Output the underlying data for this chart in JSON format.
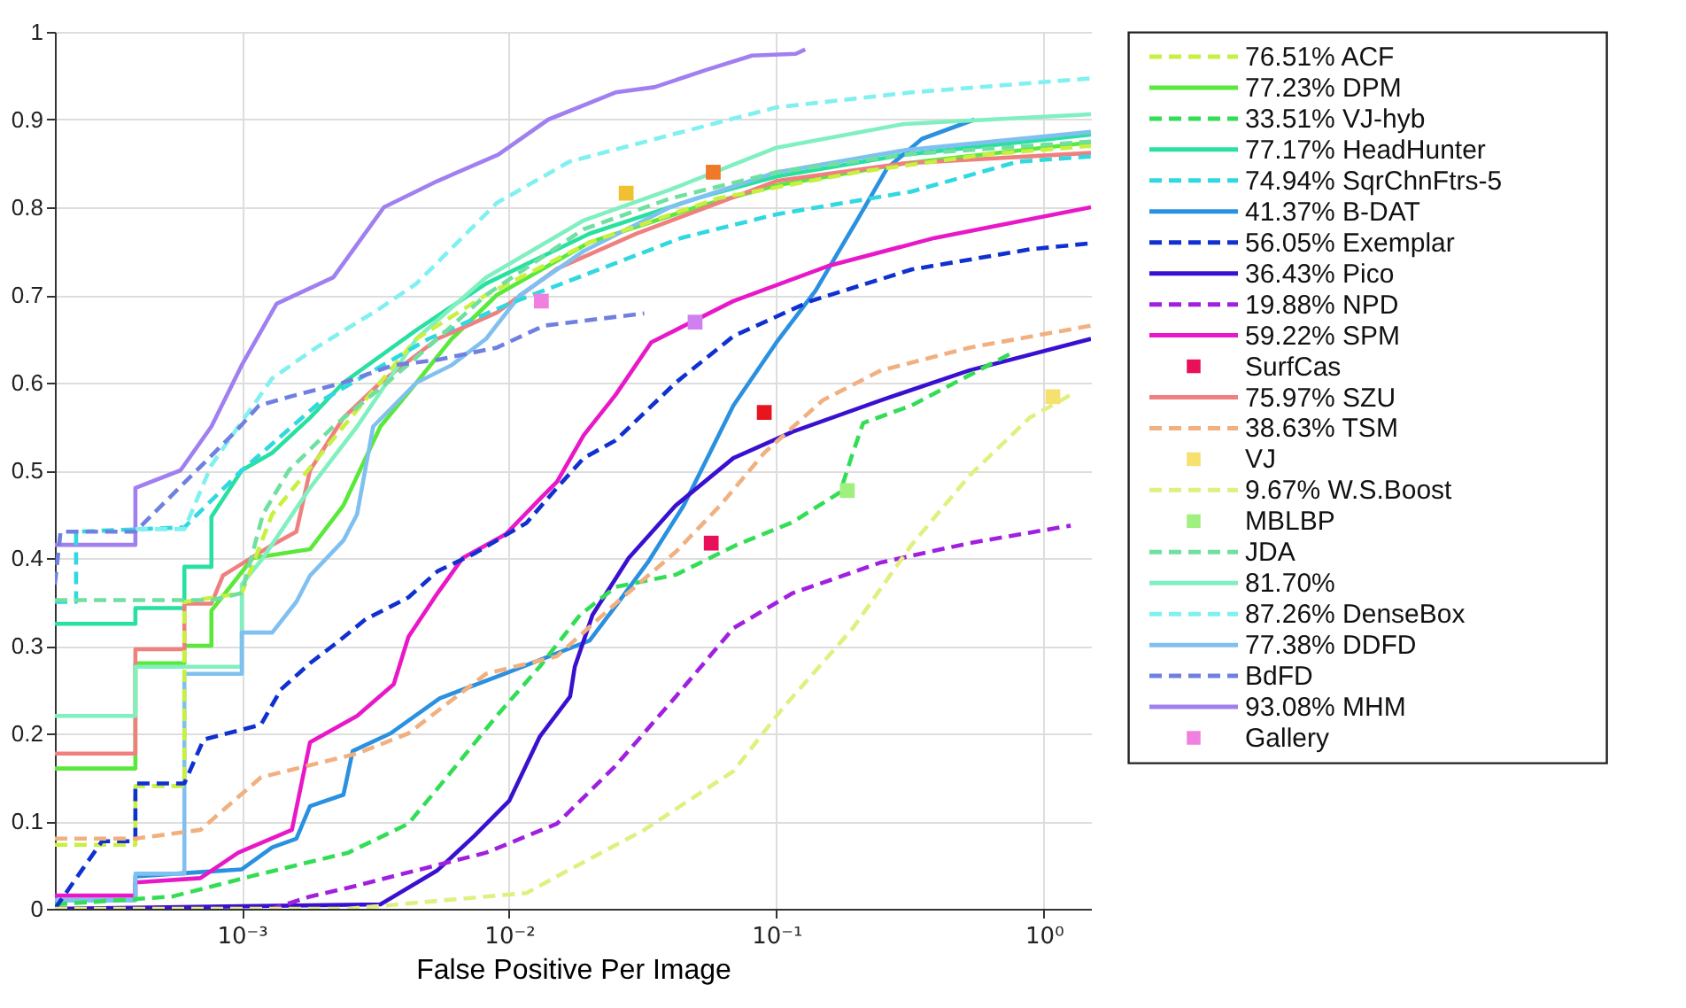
{
  "chart_data": {
    "type": "line",
    "xlabel": "False Positive Per Image",
    "log": "x",
    "grid": true,
    "legend": "right",
    "xlim": [
      0.0002,
      1.5
    ],
    "xticks": [
      {
        "value": 0.001,
        "label": "10⁻³"
      },
      {
        "value": 0.01,
        "label": "10⁻²"
      },
      {
        "value": 0.1,
        "label": "10⁻¹"
      },
      {
        "value": 1,
        "label": "10⁰"
      }
    ],
    "ylim": [
      0,
      1
    ],
    "yticks": [
      0,
      0.1,
      0.2,
      0.3,
      0.4,
      0.5,
      0.6,
      0.7,
      0.8,
      0.9,
      1
    ],
    "series": [
      {
        "type": "scatter",
        "marker": "square",
        "color": "#e8141e",
        "x": [
          0.09
        ],
        "values": [
          0.566
        ]
      },
      {
        "type": "scatter",
        "marker": "square",
        "color": "#f07828",
        "x": [
          0.058
        ],
        "values": [
          0.84
        ]
      },
      {
        "type": "scatter",
        "marker": "square",
        "color": "#f0c030",
        "x": [
          0.0274
        ],
        "values": [
          0.816
        ]
      },
      {
        "name": "76.51% ACF",
        "type": "line",
        "line_style": "dashed",
        "color": "#c8f040",
        "x": [
          0.0002,
          0.0004,
          0.0004,
          0.00061,
          0.00061,
          0.001,
          0.0013,
          0.0024,
          0.0045,
          0.0082,
          0.02,
          0.06,
          0.2,
          0.6,
          1.5
        ],
        "values": [
          0.073,
          0.073,
          0.14,
          0.14,
          0.35,
          0.36,
          0.45,
          0.55,
          0.65,
          0.7,
          0.76,
          0.81,
          0.84,
          0.86,
          0.87
        ]
      },
      {
        "name": "77.23% DPM",
        "type": "line",
        "line_style": "solid",
        "color": "#5ae83a",
        "x": [
          0.0002,
          0.0004,
          0.0004,
          0.00061,
          0.00061,
          0.00077,
          0.00077,
          0.0011,
          0.0018,
          0.0024,
          0.0033,
          0.0045,
          0.0061,
          0.009,
          0.02,
          0.05,
          0.1,
          0.3,
          1.5
        ],
        "values": [
          0.16,
          0.16,
          0.28,
          0.28,
          0.3,
          0.3,
          0.34,
          0.4,
          0.41,
          0.46,
          0.55,
          0.6,
          0.65,
          0.7,
          0.76,
          0.8,
          0.825,
          0.85,
          0.874
        ]
      },
      {
        "name": "33.51% VJ-hyb",
        "type": "line",
        "line_style": "dashed",
        "color": "#33dd55",
        "x": [
          0.0002,
          0.00055,
          0.00108,
          0.0025,
          0.0042,
          0.0061,
          0.0091,
          0.013,
          0.0184,
          0.025,
          0.042,
          0.071,
          0.115,
          0.173,
          0.193,
          0.211,
          0.32,
          0.76
        ],
        "values": [
          0.005,
          0.014,
          0.037,
          0.064,
          0.097,
          0.157,
          0.222,
          0.276,
          0.335,
          0.367,
          0.381,
          0.415,
          0.441,
          0.475,
          0.52,
          0.554,
          0.574,
          0.634
        ]
      },
      {
        "name": "77.17% HeadHunter",
        "type": "line",
        "line_style": "solid",
        "color": "#28e0a0",
        "x": [
          0.0002,
          0.0004,
          0.0004,
          0.00061,
          0.00061,
          0.00077,
          0.00077,
          0.001,
          0.0013,
          0.0018,
          0.0024,
          0.0045,
          0.0082,
          0.02,
          0.05,
          0.1,
          0.3,
          1.5
        ],
        "values": [
          0.325,
          0.325,
          0.343,
          0.343,
          0.39,
          0.39,
          0.447,
          0.5,
          0.52,
          0.56,
          0.6,
          0.66,
          0.713,
          0.77,
          0.81,
          0.835,
          0.86,
          0.883
        ]
      },
      {
        "name": "74.94% SqrChnFtrs-5",
        "type": "line",
        "line_style": "dashed",
        "color": "#30d8e0",
        "x": [
          0.0002,
          0.00024,
          0.00024,
          0.00061,
          0.001,
          0.002,
          0.005,
          0.01,
          0.02,
          0.044,
          0.1,
          0.32,
          0.8,
          1.5
        ],
        "values": [
          0.35,
          0.35,
          0.43,
          0.435,
          0.5,
          0.58,
          0.65,
          0.69,
          0.725,
          0.765,
          0.792,
          0.818,
          0.852,
          0.858
        ]
      },
      {
        "name": "41.37% B-DAT",
        "type": "line",
        "line_style": "solid",
        "color": "#2a90e0",
        "x": [
          0.0002,
          0.0004,
          0.0004,
          0.001,
          0.0013,
          0.0016,
          0.0018,
          0.0024,
          0.0026,
          0.0036,
          0.0055,
          0.01,
          0.02,
          0.025,
          0.033,
          0.045,
          0.069,
          0.1,
          0.14,
          0.2,
          0.26,
          0.35,
          0.55
        ],
        "values": [
          0.01,
          0.01,
          0.037,
          0.045,
          0.07,
          0.08,
          0.117,
          0.13,
          0.18,
          0.2,
          0.24,
          0.27,
          0.306,
          0.345,
          0.395,
          0.46,
          0.574,
          0.646,
          0.705,
          0.785,
          0.845,
          0.878,
          0.9
        ]
      },
      {
        "name": "56.05% Exemplar",
        "type": "line",
        "line_style": "dashed",
        "color": "#1030d0",
        "x": [
          0.0002,
          0.0003,
          0.0004,
          0.0004,
          0.00061,
          0.00072,
          0.00118,
          0.0014,
          0.0018,
          0.0023,
          0.0029,
          0.0042,
          0.0054,
          0.0074,
          0.0116,
          0.0151,
          0.019,
          0.025,
          0.042,
          0.069,
          0.134,
          0.32,
          0.885,
          1.5
        ],
        "values": [
          0.0,
          0.077,
          0.077,
          0.143,
          0.143,
          0.193,
          0.21,
          0.25,
          0.28,
          0.305,
          0.33,
          0.355,
          0.385,
          0.405,
          0.44,
          0.48,
          0.514,
          0.534,
          0.6,
          0.653,
          0.693,
          0.729,
          0.752,
          0.759
        ]
      },
      {
        "name": "36.43% Pico",
        "type": "line",
        "line_style": "solid",
        "color": "#3a10d0",
        "x": [
          0.0002,
          0.0033,
          0.0054,
          0.0074,
          0.01,
          0.013,
          0.0169,
          0.0176,
          0.0205,
          0.028,
          0.042,
          0.069,
          0.115,
          0.246,
          0.527,
          1.5
        ],
        "values": [
          0.0,
          0.005,
          0.044,
          0.083,
          0.123,
          0.196,
          0.242,
          0.276,
          0.335,
          0.4,
          0.46,
          0.514,
          0.544,
          0.58,
          0.614,
          0.65
        ]
      },
      {
        "name": "19.88% NPD",
        "type": "line",
        "line_style": "dashed",
        "color": "#a020e0",
        "x": [
          0.0002,
          0.0013,
          0.0018,
          0.0025,
          0.0082,
          0.0151,
          0.025,
          0.042,
          0.069,
          0.115,
          0.246,
          0.527,
          1.26
        ],
        "values": [
          0.0,
          0.0,
          0.014,
          0.024,
          0.064,
          0.097,
          0.163,
          0.242,
          0.32,
          0.36,
          0.395,
          0.417,
          0.437
        ]
      },
      {
        "name": "59.22% SPM",
        "type": "line",
        "line_style": "solid",
        "color": "#e818c8",
        "x": [
          0.0002,
          0.0004,
          0.0004,
          0.0007,
          0.00097,
          0.00154,
          0.0018,
          0.0027,
          0.0037,
          0.0042,
          0.0054,
          0.0067,
          0.0097,
          0.013,
          0.0151,
          0.019,
          0.025,
          0.034,
          0.069,
          0.156,
          0.39,
          1.5
        ],
        "values": [
          0.015,
          0.015,
          0.03,
          0.035,
          0.064,
          0.09,
          0.19,
          0.22,
          0.256,
          0.31,
          0.36,
          0.4,
          0.427,
          0.467,
          0.487,
          0.54,
          0.586,
          0.646,
          0.693,
          0.733,
          0.765,
          0.8
        ]
      },
      {
        "name": "SurfCas",
        "type": "scatter",
        "marker": "square",
        "color": "#e8105a",
        "x": [
          0.057
        ],
        "values": [
          0.417
        ]
      },
      {
        "name": "75.97% SZU",
        "type": "line",
        "line_style": "solid",
        "color": "#f08080",
        "x": [
          0.0002,
          0.0004,
          0.0004,
          0.00061,
          0.00061,
          0.00077,
          0.00085,
          0.0013,
          0.0016,
          0.0018,
          0.0024,
          0.0033,
          0.0054,
          0.009,
          0.0151,
          0.03,
          0.1,
          0.3,
          1.5
        ],
        "values": [
          0.177,
          0.177,
          0.296,
          0.296,
          0.348,
          0.348,
          0.38,
          0.415,
          0.43,
          0.5,
          0.56,
          0.6,
          0.65,
          0.68,
          0.73,
          0.77,
          0.83,
          0.85,
          0.862
        ]
      },
      {
        "name": "38.63% TSM",
        "type": "line",
        "line_style": "dashed",
        "color": "#f0b080",
        "x": [
          0.0002,
          0.0004,
          0.0007,
          0.00118,
          0.0027,
          0.0042,
          0.0082,
          0.0151,
          0.025,
          0.042,
          0.062,
          0.09,
          0.149,
          0.246,
          0.527,
          1.5
        ],
        "values": [
          0.08,
          0.08,
          0.09,
          0.15,
          0.177,
          0.2,
          0.268,
          0.288,
          0.348,
          0.407,
          0.461,
          0.52,
          0.58,
          0.614,
          0.64,
          0.665
        ]
      },
      {
        "name": "VJ",
        "type": "scatter",
        "marker": "square",
        "color": "#f5e070",
        "x": [
          1.08
        ],
        "values": [
          0.584
        ]
      },
      {
        "name": "9.67% W.S.Boost",
        "type": "line",
        "line_style": "dashed",
        "color": "#e0f080",
        "x": [
          0.0002,
          0.0025,
          0.0116,
          0.0151,
          0.032,
          0.069,
          0.105,
          0.193,
          0.32,
          0.527,
          0.885,
          1.26
        ],
        "values": [
          0.0,
          0.0,
          0.018,
          0.037,
          0.09,
          0.157,
          0.228,
          0.32,
          0.415,
          0.494,
          0.56,
          0.586
        ]
      },
      {
        "name": "MBLBP",
        "type": "scatter",
        "marker": "square",
        "color": "#a0f080",
        "x": [
          0.184
        ],
        "values": [
          0.477
        ]
      },
      {
        "name": "JDA",
        "type": "line",
        "line_style": "dashed",
        "color": "#70e0a0",
        "x": [
          0.0002,
          0.00077,
          0.001,
          0.0012,
          0.0015,
          0.0022,
          0.0035,
          0.0054,
          0.0082,
          0.019,
          0.04,
          0.1,
          0.3,
          1.5
        ],
        "values": [
          0.352,
          0.352,
          0.36,
          0.45,
          0.5,
          0.55,
          0.6,
          0.65,
          0.7,
          0.775,
          0.81,
          0.84,
          0.86,
          0.875
        ]
      },
      {
        "name": "81.70%",
        "type": "line",
        "line_style": "solid",
        "color": "#80f0c0",
        "x": [
          0.0002,
          0.0004,
          0.0004,
          0.001,
          0.001,
          0.0012,
          0.0018,
          0.0027,
          0.0045,
          0.0082,
          0.019,
          0.04,
          0.1,
          0.3,
          1.5
        ],
        "values": [
          0.22,
          0.22,
          0.276,
          0.276,
          0.37,
          0.4,
          0.48,
          0.55,
          0.65,
          0.72,
          0.785,
          0.82,
          0.868,
          0.895,
          0.906
        ]
      },
      {
        "name": "87.26% DenseBox",
        "type": "line",
        "line_style": "dashed",
        "color": "#80f0f0",
        "x": [
          0.0004,
          0.00061,
          0.00077,
          0.0013,
          0.0019,
          0.0033,
          0.0045,
          0.009,
          0.0168,
          0.042,
          0.1,
          0.32,
          1.5
        ],
        "values": [
          0.433,
          0.433,
          0.506,
          0.605,
          0.64,
          0.685,
          0.713,
          0.805,
          0.852,
          0.884,
          0.914,
          0.931,
          0.947
        ]
      },
      {
        "name": "77.38% DDFD",
        "type": "line",
        "line_style": "solid",
        "color": "#80c0f0",
        "x": [
          0.0002,
          0.0004,
          0.0004,
          0.00061,
          0.00061,
          0.001,
          0.001,
          0.0013,
          0.0016,
          0.0018,
          0.0024,
          0.0027,
          0.0031,
          0.0045,
          0.0061,
          0.0082,
          0.011,
          0.019,
          0.04,
          0.1,
          0.3,
          1.5
        ],
        "values": [
          0.01,
          0.01,
          0.04,
          0.04,
          0.268,
          0.268,
          0.315,
          0.315,
          0.35,
          0.38,
          0.42,
          0.45,
          0.55,
          0.6,
          0.62,
          0.65,
          0.7,
          0.75,
          0.8,
          0.84,
          0.865,
          0.886
        ]
      },
      {
        "name": "BdFD",
        "type": "line",
        "line_style": "dashed",
        "color": "#7080e0",
        "x": [
          0.0002,
          0.00021,
          0.0004,
          0.00096,
          0.00116,
          0.0016,
          0.0024,
          0.0037,
          0.0054,
          0.009,
          0.0135,
          0.032
        ],
        "values": [
          0.37,
          0.43,
          0.43,
          0.546,
          0.574,
          0.586,
          0.6,
          0.62,
          0.626,
          0.64,
          0.665,
          0.679
        ]
      },
      {
        "name": "93.08% MHM",
        "type": "line",
        "line_style": "solid",
        "color": "#a080f0",
        "x": [
          0.0002,
          0.0004,
          0.0004,
          0.00059,
          0.00077,
          0.001,
          0.00135,
          0.0022,
          0.0034,
          0.0054,
          0.0091,
          0.014,
          0.025,
          0.035,
          0.055,
          0.081,
          0.118,
          0.128
        ],
        "values": [
          0.415,
          0.415,
          0.48,
          0.5,
          0.55,
          0.62,
          0.69,
          0.72,
          0.8,
          0.83,
          0.86,
          0.9,
          0.931,
          0.937,
          0.957,
          0.973,
          0.975,
          0.98
        ]
      },
      {
        "type": "scatter",
        "marker": "square",
        "color": "#d080f0",
        "x": [
          0.0496
        ],
        "values": [
          0.669
        ]
      },
      {
        "name": "Gallery",
        "type": "scatter",
        "marker": "square",
        "color": "#f080e0",
        "x": [
          0.0132
        ],
        "values": [
          0.693
        ]
      }
    ]
  }
}
